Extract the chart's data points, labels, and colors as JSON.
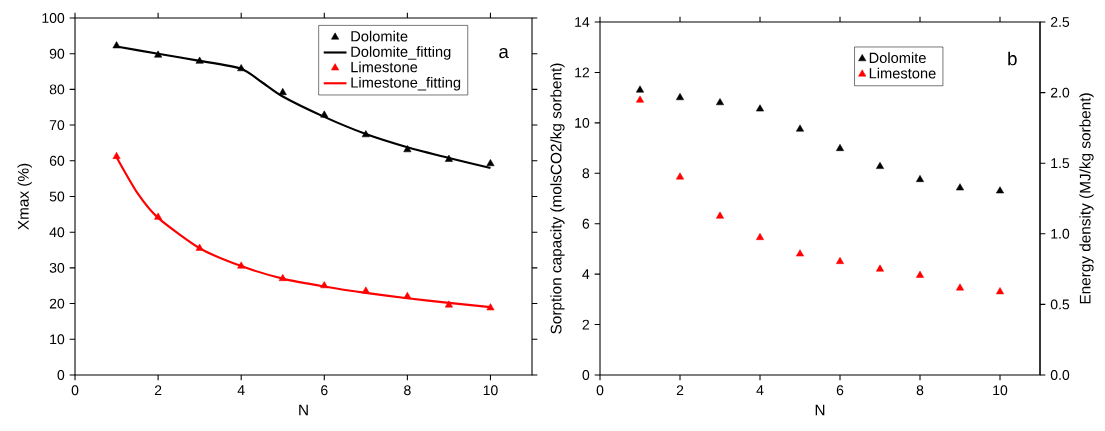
{
  "chart_data": [
    {
      "type": "scatter",
      "xlabel": "N",
      "ylabel": "Xmax (%)",
      "xlim": [
        0,
        11
      ],
      "xticks": [
        0,
        2,
        4,
        6,
        8,
        10
      ],
      "ylim": [
        0,
        100
      ],
      "yticks": [
        0,
        10,
        20,
        30,
        40,
        50,
        60,
        70,
        80,
        90,
        100
      ],
      "legend": "top right",
      "annotations": [
        "a"
      ],
      "series": [
        {
          "name": "Dolomite",
          "marker": "triangle",
          "color": "#000000",
          "x": [
            1,
            2,
            3,
            4,
            5,
            6,
            7,
            8,
            9,
            10
          ],
          "values": [
            92.2,
            89.6,
            87.9,
            85.8,
            79.1,
            72.8,
            67.3,
            63.1,
            60.4,
            59.2
          ]
        },
        {
          "name": "Dolomite_fitting",
          "type": "line",
          "marker": "none",
          "color": "#000000",
          "x": [
            1,
            2,
            3,
            4,
            4.5,
            5,
            6,
            7,
            8,
            9,
            10
          ],
          "values": [
            92.0,
            90.0,
            88.0,
            85.8,
            82.0,
            78.0,
            72.3,
            67.5,
            63.8,
            60.8,
            58.0
          ]
        },
        {
          "name": "Limestone",
          "marker": "triangle",
          "color": "#ff0000",
          "x": [
            1,
            2,
            3,
            4,
            5,
            6,
            7,
            8,
            9,
            10
          ],
          "values": [
            61.2,
            44.2,
            35.5,
            30.5,
            27.0,
            25.0,
            23.5,
            22.0,
            19.6,
            18.8
          ]
        },
        {
          "name": "Limestone_fitting",
          "type": "line",
          "marker": "none",
          "color": "#ff0000",
          "x": [
            1,
            1.5,
            2,
            3,
            4,
            5,
            6,
            7,
            8,
            9,
            10
          ],
          "values": [
            61.0,
            51.0,
            44.0,
            35.5,
            30.5,
            27.0,
            24.8,
            23.0,
            21.5,
            20.2,
            19.0
          ]
        }
      ]
    },
    {
      "type": "scatter",
      "xlabel": "N",
      "ylabel": "Sorption capacity (molsCO2/kg sorbent)",
      "y2label": "Energy density (MJ/kg sorbent)",
      "xlim": [
        0,
        11
      ],
      "xticks": [
        0,
        2,
        4,
        6,
        8,
        10
      ],
      "ylim": [
        0,
        14
      ],
      "yticks": [
        0,
        2,
        4,
        6,
        8,
        10,
        12,
        14
      ],
      "y2lim": [
        0,
        2.5
      ],
      "y2ticks": [
        {
          "value": 0,
          "label": "0.0"
        },
        {
          "value": 0.5,
          "label": "0.5"
        },
        {
          "value": 1,
          "label": "1.0"
        },
        {
          "value": 1.5,
          "label": "1.5"
        },
        {
          "value": 2,
          "label": "2.0"
        },
        {
          "value": 2.5,
          "label": "2.5"
        }
      ],
      "legend": "top right",
      "annotations": [
        "b"
      ],
      "series": [
        {
          "name": "Dolomite",
          "marker": "triangle",
          "color": "#000000",
          "x": [
            1,
            2,
            3,
            4,
            5,
            6,
            7,
            8,
            9,
            10
          ],
          "values": [
            11.3,
            11.0,
            10.8,
            10.55,
            9.75,
            8.98,
            8.27,
            7.75,
            7.42,
            7.3
          ]
        },
        {
          "name": "Limestone",
          "marker": "triangle",
          "color": "#ff0000",
          "x": [
            1,
            2,
            3,
            4,
            5,
            6,
            7,
            8,
            9,
            10
          ],
          "values": [
            10.9,
            7.85,
            6.3,
            5.45,
            4.8,
            4.5,
            4.2,
            3.95,
            3.45,
            3.3
          ]
        }
      ]
    }
  ]
}
